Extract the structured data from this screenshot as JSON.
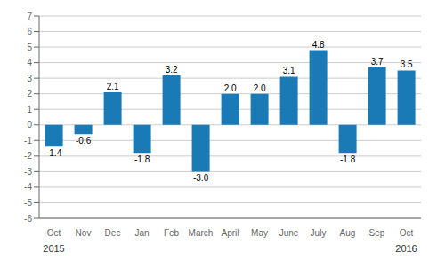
{
  "chart_data": {
    "type": "bar",
    "categories": [
      "Oct",
      "Nov",
      "Dec",
      "Jan",
      "Feb",
      "March",
      "April",
      "May",
      "June",
      "July",
      "Aug",
      "Sep",
      "Oct"
    ],
    "values": [
      -1.4,
      -0.6,
      2.1,
      -1.8,
      3.2,
      -3.0,
      2.0,
      2.0,
      3.1,
      4.8,
      -1.8,
      3.7,
      3.5
    ],
    "value_labels": [
      "-1.4",
      "-0.6",
      "2.1",
      "-1.8",
      "3.2",
      "-3.0",
      "2.0",
      "2.0",
      "3.1",
      "4.8",
      "-1.8",
      "3.7",
      "3.5"
    ],
    "color": "#1a7ab5",
    "ylim": [
      -6,
      7
    ],
    "yticks": [
      -6,
      -5,
      -4,
      -3,
      -2,
      -1,
      0,
      1,
      2,
      3,
      4,
      5,
      6,
      7
    ],
    "grid": true,
    "data_labels": true,
    "annotations": [
      {
        "text": "2015",
        "x": 0
      },
      {
        "text": "2016",
        "x": 12
      }
    ]
  }
}
